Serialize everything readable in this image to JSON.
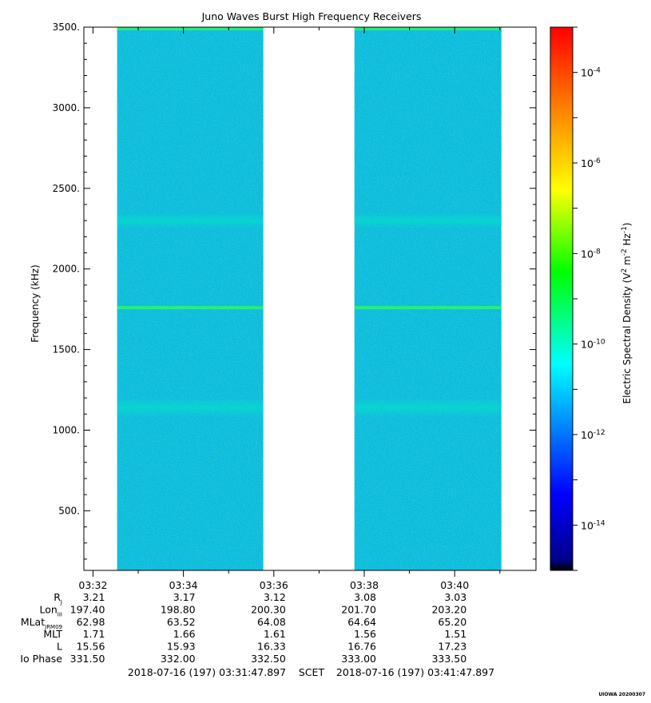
{
  "chart_data": {
    "type": "heatmap",
    "title": "Juno Waves Burst High Frequency Receivers",
    "ylabel": "Frequency (kHz)",
    "colorbar_label": "Electric Spectral Density (V² m⁻² Hz⁻¹)",
    "colorbar_label_parts": {
      "prefix": "Electric Spectral Density (V",
      "sup1": "2",
      "mid": " m",
      "sup2": "-2",
      "mid2": " Hz",
      "sup3": "-1",
      "suffix": ")"
    },
    "y_range": [
      130,
      3500
    ],
    "y_ticks": [
      {
        "value": 3500,
        "label": "3500."
      },
      {
        "value": 3000,
        "label": "3000."
      },
      {
        "value": 2500,
        "label": "2500."
      },
      {
        "value": 2000,
        "label": "2000."
      },
      {
        "value": 1500,
        "label": "1500."
      },
      {
        "value": 1000,
        "label": "1000."
      },
      {
        "value": 500,
        "label": "500."
      }
    ],
    "x_range": [
      "03:31:47.897",
      "03:41:47.897"
    ],
    "x_ticks": [
      "03:32",
      "03:34",
      "03:36",
      "03:38",
      "03:40"
    ],
    "colorbar": {
      "scale": "log",
      "range": [
        1e-15,
        0.001
      ],
      "tick_base": "10",
      "ticks": [
        {
          "exp": -4,
          "label_exp": "-4"
        },
        {
          "exp": -6,
          "label_exp": "-6"
        },
        {
          "exp": -8,
          "label_exp": "-8"
        },
        {
          "exp": -10,
          "label_exp": "-10"
        },
        {
          "exp": -12,
          "label_exp": "-12"
        },
        {
          "exp": -14,
          "label_exp": "-14"
        }
      ],
      "colors": [
        "#000000",
        "#00008b",
        "#0000ff",
        "#0080ff",
        "#00ffff",
        "#00ff00",
        "#ffff00",
        "#ff8000",
        "#ff0000"
      ]
    },
    "data_segments": [
      {
        "start": "03:32:32",
        "end": "03:35:46"
      },
      {
        "start": "03:37:47",
        "end": "03:41:02"
      }
    ],
    "background_level": "~1e-12",
    "features": [
      {
        "label": "",
        "frequency": 1760,
        "level": "~1e-11",
        "type": "narrowband line"
      },
      {
        "label": "",
        "frequency": 3490,
        "level": "~1e-11",
        "type": "top edge band"
      },
      {
        "label": "",
        "frequency_range": [
          2250,
          2350
        ],
        "level": "~3e-12",
        "type": "enhanced band"
      },
      {
        "label": "",
        "frequency_range": [
          1080,
          1200
        ],
        "level": "~3e-12",
        "type": "enhanced band"
      }
    ]
  },
  "ephemeris": {
    "rows": [
      {
        "label": "R",
        "sub": "J",
        "values": [
          "3.21",
          "3.17",
          "3.12",
          "3.08",
          "3.03"
        ]
      },
      {
        "label": "Lon",
        "sub": "III",
        "values": [
          "197.40",
          "198.80",
          "200.30",
          "201.70",
          "203.20"
        ]
      },
      {
        "label": "MLat",
        "sub": "JRM09",
        "values": [
          "62.98",
          "63.52",
          "64.08",
          "64.64",
          "65.20"
        ]
      },
      {
        "label": "MLT",
        "sub": "",
        "values": [
          "1.71",
          "1.66",
          "1.61",
          "1.56",
          "1.51"
        ]
      },
      {
        "label": "L",
        "sub": "",
        "values": [
          "15.56",
          "15.93",
          "16.33",
          "16.76",
          "17.23"
        ]
      },
      {
        "label": "Io Phase",
        "sub": "",
        "values": [
          "331.50",
          "332.00",
          "332.50",
          "333.00",
          "333.50"
        ]
      }
    ]
  },
  "footer": {
    "start_time": "2018-07-16 (197) 03:31:47.897",
    "scet": "SCET",
    "end_time": "2018-07-16 (197) 03:41:47.897",
    "stamp": "UIOWA 20200307"
  }
}
